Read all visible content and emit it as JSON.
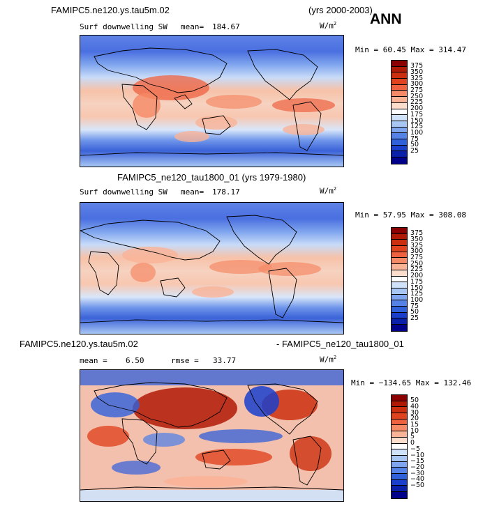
{
  "header": {
    "case_title": "FAMIPC5.ne120.ys.tau5m.02",
    "years": "(yrs 2000-2003)",
    "season": "ANN"
  },
  "panels": [
    {
      "title": "",
      "variable": "Surf downwelling SW",
      "stat_label": "mean=",
      "stat_value": "184.67",
      "units": "W/m",
      "units_sup": "2",
      "range": "Min =  60.45 Max = 314.47",
      "colorbar": {
        "labels": [
          "375",
          "350",
          "325",
          "300",
          "275",
          "250",
          "225",
          "200",
          "175",
          "150",
          "125",
          "100",
          "75",
          "50",
          "25"
        ],
        "colors": [
          "#8b0000",
          "#b01a05",
          "#cc2f0f",
          "#e0441f",
          "#ee6240",
          "#f58a66",
          "#f9b397",
          "#fdddcc",
          "#ffffff",
          "#cfe2fa",
          "#a8c6f4",
          "#7fa5ee",
          "#5582e6",
          "#3160db",
          "#1a3fcc",
          "#0a20a8",
          "#00008b"
        ]
      }
    },
    {
      "title": "FAMIPC5_ne120_tau1800_01 (yrs 1979-1980)",
      "variable": "Surf downwelling SW",
      "stat_label": "mean=",
      "stat_value": "178.17",
      "units": "W/m",
      "units_sup": "2",
      "range": "Min =  57.95 Max = 308.08",
      "colorbar": {
        "labels": [
          "375",
          "350",
          "325",
          "300",
          "275",
          "250",
          "225",
          "200",
          "175",
          "150",
          "125",
          "100",
          "75",
          "50",
          "25"
        ],
        "colors": [
          "#8b0000",
          "#b01a05",
          "#cc2f0f",
          "#e0441f",
          "#ee6240",
          "#f58a66",
          "#f9b397",
          "#fdddcc",
          "#ffffff",
          "#cfe2fa",
          "#a8c6f4",
          "#7fa5ee",
          "#5582e6",
          "#3160db",
          "#1a3fcc",
          "#0a20a8",
          "#00008b"
        ]
      }
    },
    {
      "title_left": "FAMIPC5.ne120.ys.tau5m.02",
      "title_right": "- FAMIPC5_ne120_tau1800_01",
      "stat_label": "mean =",
      "stat_value": "6.50",
      "rmse_label": "rmse =",
      "rmse_value": "33.77",
      "units": "W/m",
      "units_sup": "2",
      "range": "Min = −134.65 Max = 132.46",
      "colorbar": {
        "labels": [
          "50",
          "40",
          "30",
          "20",
          "15",
          "10",
          "5",
          "0",
          "−5",
          "−10",
          "−15",
          "−20",
          "−30",
          "−40",
          "−50"
        ],
        "colors": [
          "#8b0000",
          "#b01a05",
          "#cc2f0f",
          "#e0441f",
          "#ee6240",
          "#f58a66",
          "#f9b397",
          "#fdddcc",
          "#ffffff",
          "#cfe2fa",
          "#a8c6f4",
          "#7fa5ee",
          "#5582e6",
          "#3160db",
          "#1a3fcc",
          "#0a20a8",
          "#00008b"
        ]
      }
    }
  ]
}
